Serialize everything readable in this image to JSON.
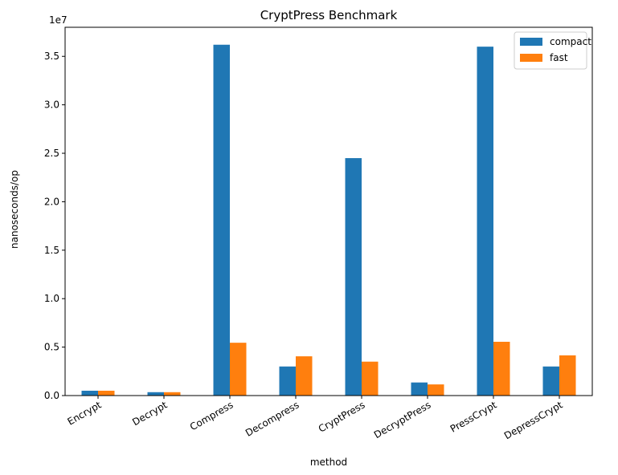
{
  "chart_data": {
    "type": "bar",
    "title": "CryptPress Benchmark",
    "xlabel": "method",
    "ylabel": "nanoseconds/op",
    "y_offset_label": "1e7",
    "y_scale": 10000000,
    "ylim": [
      0,
      38000000
    ],
    "yticks": [
      0,
      5000000,
      10000000,
      15000000,
      20000000,
      25000000,
      30000000,
      35000000
    ],
    "ytick_labels": [
      "0.0",
      "0.5",
      "1.0",
      "1.5",
      "2.0",
      "2.5",
      "3.0",
      "3.5"
    ],
    "categories": [
      "Encrypt",
      "Decrypt",
      "Compress",
      "Decompress",
      "CryptPress",
      "DecryptPress",
      "PressCrypt",
      "DepressCrypt"
    ],
    "series": [
      {
        "name": "compact",
        "color": "#1f77b4",
        "values": [
          500000,
          350000,
          36200000,
          3000000,
          24500000,
          1350000,
          36000000,
          3000000
        ]
      },
      {
        "name": "fast",
        "color": "#ff7f0e",
        "values": [
          500000,
          350000,
          5450000,
          4050000,
          3500000,
          1150000,
          5550000,
          4150000
        ]
      }
    ],
    "legend_position": "top-right",
    "grid": false
  }
}
